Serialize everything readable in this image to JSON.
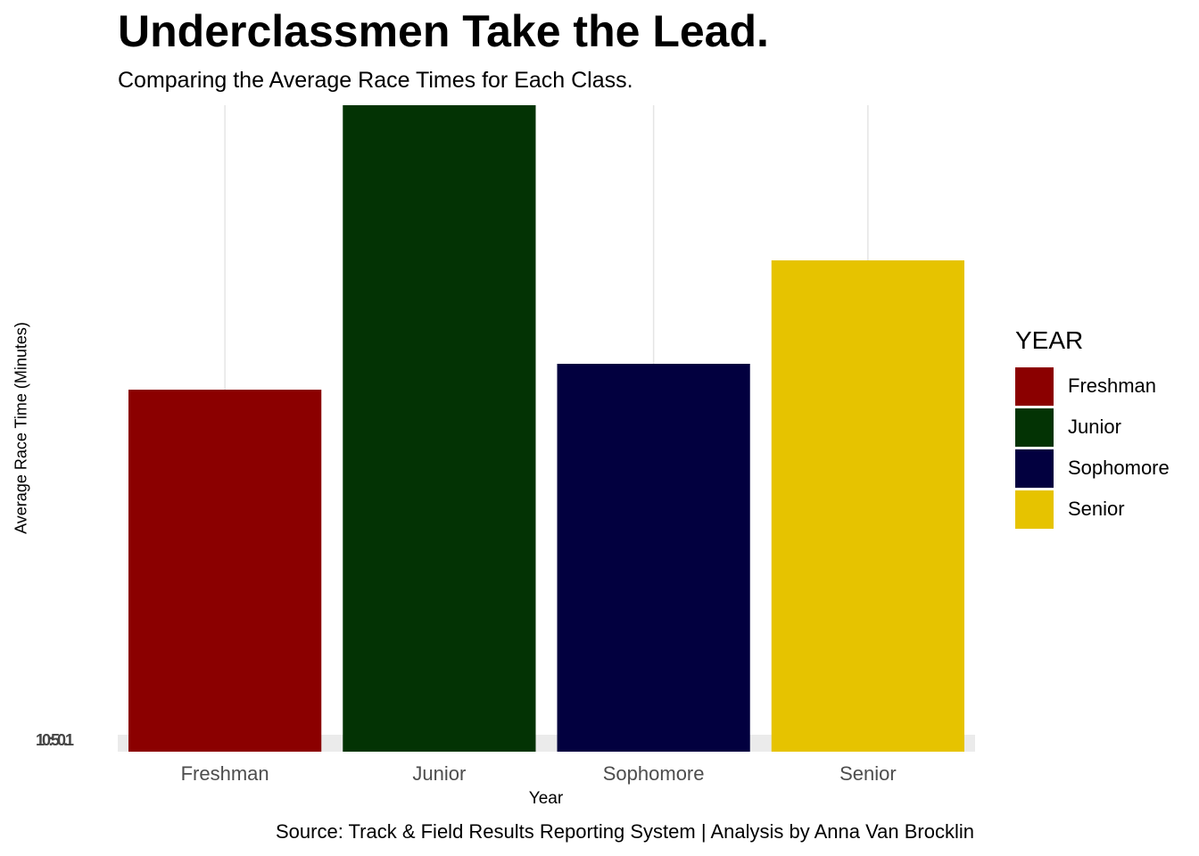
{
  "chart_data": {
    "type": "bar",
    "title": "Underclassmen Take the Lead.",
    "subtitle": "Comparing the Average Race Times for Each Class.",
    "xlabel": "Year",
    "ylabel": "Average Race Time (Minutes)",
    "categories": [
      "Freshman",
      "Junior",
      "Sophomore",
      "Senior"
    ],
    "values": [
      0.56,
      1.0,
      0.6,
      0.76
    ],
    "value_units": "relative (no readable y-axis scale)",
    "y_tick_text": "10:50.1",
    "colors": [
      "#8b0000",
      "#033304",
      "#02003f",
      "#e6c300"
    ],
    "legend": {
      "title": "YEAR",
      "position": "right",
      "items": [
        "Freshman",
        "Junior",
        "Sophomore",
        "Senior"
      ]
    },
    "grid": true,
    "caption": "Source: Track & Field Results Reporting System | Analysis by Anna Van Brocklin"
  }
}
